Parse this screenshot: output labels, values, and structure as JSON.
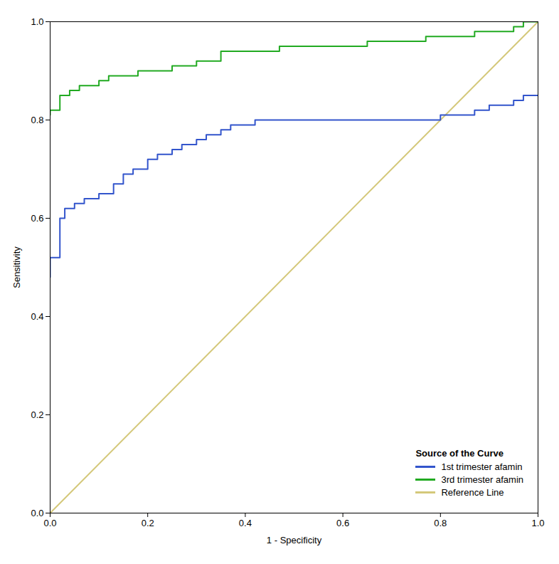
{
  "chart_data": {
    "type": "line",
    "xlabel": "1 - Specificity",
    "ylabel": "Sensitivity",
    "legend_title": "Source of the Curve",
    "legend": "lower right",
    "xlim": [
      0.0,
      1.0
    ],
    "ylim": [
      0.0,
      1.0
    ],
    "xticks": [
      {
        "value": 0.0,
        "label": "0.0"
      },
      0.2,
      0.4,
      0.6,
      0.8,
      {
        "value": 1.0,
        "label": "1.0"
      }
    ],
    "yticks": [
      {
        "value": 0.0,
        "label": "0.0"
      },
      0.2,
      0.4,
      0.6,
      0.8,
      {
        "value": 1.0,
        "label": "1.0"
      }
    ],
    "series": [
      {
        "name": "1st trimester afamin",
        "color": "#3355CC",
        "x": [
          0.0,
          0.0,
          0.02,
          0.02,
          0.03,
          0.03,
          0.05,
          0.05,
          0.07,
          0.07,
          0.1,
          0.1,
          0.13,
          0.13,
          0.15,
          0.15,
          0.17,
          0.17,
          0.2,
          0.2,
          0.22,
          0.22,
          0.25,
          0.25,
          0.27,
          0.27,
          0.3,
          0.3,
          0.32,
          0.32,
          0.35,
          0.35,
          0.37,
          0.37,
          0.4,
          0.4,
          0.42,
          0.42,
          0.45,
          0.45,
          0.48,
          0.48,
          0.5,
          0.5,
          0.55,
          0.55,
          0.57,
          0.57,
          0.78,
          0.78,
          0.8,
          0.8,
          0.83,
          0.83,
          0.87,
          0.87,
          0.9,
          0.9,
          0.95,
          0.95,
          0.97,
          0.97,
          1.0
        ],
        "values": [
          0.48,
          0.52,
          0.52,
          0.6,
          0.6,
          0.62,
          0.62,
          0.63,
          0.63,
          0.64,
          0.64,
          0.65,
          0.65,
          0.67,
          0.67,
          0.69,
          0.69,
          0.7,
          0.7,
          0.72,
          0.72,
          0.73,
          0.73,
          0.74,
          0.74,
          0.75,
          0.75,
          0.76,
          0.76,
          0.77,
          0.77,
          0.78,
          0.78,
          0.79,
          0.79,
          0.79,
          0.79,
          0.8,
          0.8,
          0.8,
          0.8,
          0.8,
          0.8,
          0.8,
          0.8,
          0.8,
          0.8,
          0.8,
          0.8,
          0.8,
          0.8,
          0.81,
          0.81,
          0.81,
          0.81,
          0.82,
          0.82,
          0.83,
          0.83,
          0.84,
          0.84,
          0.85,
          0.85
        ]
      },
      {
        "name": "3rd trimester afamin",
        "color": "#22AA22",
        "x": [
          0.0,
          0.0,
          0.02,
          0.02,
          0.04,
          0.04,
          0.06,
          0.06,
          0.08,
          0.08,
          0.1,
          0.1,
          0.12,
          0.12,
          0.15,
          0.15,
          0.18,
          0.18,
          0.25,
          0.25,
          0.3,
          0.3,
          0.35,
          0.35,
          0.42,
          0.42,
          0.47,
          0.47,
          0.55,
          0.55,
          0.65,
          0.65,
          0.7,
          0.7,
          0.77,
          0.77,
          0.83,
          0.83,
          0.87,
          0.87,
          0.92,
          0.92,
          0.95,
          0.95,
          0.97,
          0.97,
          1.0
        ],
        "values": [
          0.81,
          0.82,
          0.82,
          0.85,
          0.85,
          0.86,
          0.86,
          0.87,
          0.87,
          0.87,
          0.87,
          0.88,
          0.88,
          0.89,
          0.89,
          0.89,
          0.89,
          0.9,
          0.9,
          0.91,
          0.91,
          0.92,
          0.92,
          0.94,
          0.94,
          0.94,
          0.94,
          0.95,
          0.95,
          0.95,
          0.95,
          0.96,
          0.96,
          0.96,
          0.96,
          0.97,
          0.97,
          0.97,
          0.97,
          0.98,
          0.98,
          0.98,
          0.98,
          0.99,
          0.99,
          1.0,
          1.0
        ]
      },
      {
        "name": "Reference Line",
        "color": "#D4C87A",
        "x": [
          0,
          1
        ],
        "values": [
          0,
          1
        ]
      }
    ]
  }
}
